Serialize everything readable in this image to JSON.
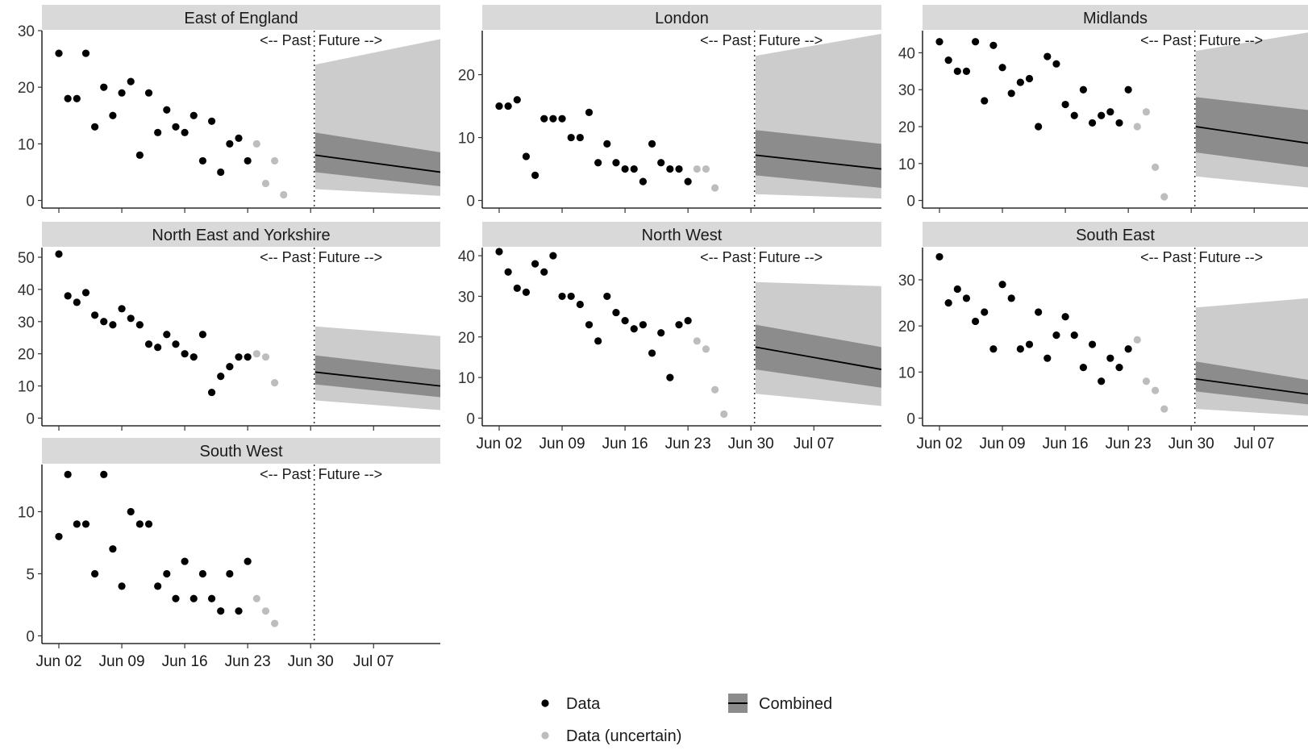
{
  "chart_data": {
    "type": "scatter",
    "past_label": "<-- Past",
    "future_label": "Future -->",
    "x_ticks": [
      "Jun 02",
      "Jun 09",
      "Jun 16",
      "Jun 23",
      "Jun 30",
      "Jul 07"
    ],
    "legend": {
      "data_label": "Data",
      "uncertain_label": "Data (uncertain)",
      "combined_label": "Combined",
      "placement": "bottom"
    },
    "colors": {
      "data": "#000000",
      "uncertain": "#bdbdbd",
      "band_outer": "#cccccc",
      "band_inner": "#8c8c8c",
      "median": "#000000",
      "strip": "#d9d9d9"
    },
    "panels": [
      {
        "title": "East of England",
        "ylim": [
          0,
          30
        ],
        "y_ticks": [
          0,
          10,
          20,
          30
        ],
        "data_start": "Jun 02",
        "data": [
          26,
          18,
          18,
          26,
          13,
          20,
          15,
          19,
          21,
          8,
          19,
          12,
          16,
          13,
          12,
          15,
          7,
          14,
          5,
          10,
          11,
          7
        ],
        "uncertain": [
          10,
          3,
          7,
          1
        ],
        "forecast": {
          "median": [
            8,
            5
          ],
          "inner": [
            [
              5,
              12
            ],
            [
              2.5,
              8.5
            ]
          ],
          "outer": [
            [
              2,
              24
            ],
            [
              0.8,
              28.5
            ]
          ]
        }
      },
      {
        "title": "London",
        "ylim": [
          0,
          27
        ],
        "y_ticks": [
          0,
          10,
          20
        ],
        "data_start": "Jun 02",
        "data": [
          15,
          15,
          16,
          7,
          4,
          13,
          13,
          13,
          10,
          10,
          14,
          6,
          9,
          6,
          5,
          5,
          3,
          9,
          6,
          5,
          5,
          3
        ],
        "uncertain": [
          5,
          5,
          2
        ],
        "forecast": {
          "median": [
            7.2,
            5
          ],
          "inner": [
            [
              4,
              11.2
            ],
            [
              2,
              9
            ]
          ],
          "outer": [
            [
              1,
              23
            ],
            [
              0.3,
              26.5
            ]
          ]
        }
      },
      {
        "title": "Midlands",
        "ylim": [
          0,
          46
        ],
        "y_ticks": [
          0,
          10,
          20,
          30,
          40
        ],
        "data_start": "Jun 02",
        "data": [
          43,
          38,
          35,
          35,
          43,
          27,
          42,
          36,
          29,
          32,
          33,
          20,
          39,
          37,
          26,
          23,
          30,
          21,
          23,
          24,
          21,
          30
        ],
        "uncertain": [
          20,
          24,
          9,
          1
        ],
        "forecast": {
          "median": [
            20,
            15.5
          ],
          "inner": [
            [
              13,
              28
            ],
            [
              9,
              24.5
            ]
          ],
          "outer": [
            [
              6.5,
              40.5
            ],
            [
              3.5,
              45.5
            ]
          ]
        }
      },
      {
        "title": "North East and Yorkshire",
        "ylim": [
          0,
          53
        ],
        "y_ticks": [
          0,
          10,
          20,
          30,
          40,
          50
        ],
        "data_start": "Jun 02",
        "data": [
          51,
          38,
          36,
          39,
          32,
          30,
          29,
          34,
          31,
          29,
          23,
          22,
          26,
          23,
          20,
          19,
          26,
          8,
          13,
          16,
          19,
          19
        ],
        "uncertain": [
          20,
          19,
          11
        ],
        "forecast": {
          "median": [
            14.3,
            10
          ],
          "inner": [
            [
              10.5,
              19.5
            ],
            [
              6.5,
              15
            ]
          ],
          "outer": [
            [
              5.5,
              28.5
            ],
            [
              2.5,
              25.5
            ]
          ]
        }
      },
      {
        "title": "North West",
        "ylim": [
          0,
          42
        ],
        "y_ticks": [
          0,
          10,
          20,
          30,
          40
        ],
        "data_start": "Jun 02",
        "data": [
          41,
          36,
          32,
          31,
          38,
          36,
          40,
          30,
          30,
          28,
          23,
          19,
          30,
          26,
          24,
          22,
          23,
          16,
          21,
          10,
          23,
          24
        ],
        "uncertain": [
          19,
          17,
          7,
          1
        ],
        "forecast": {
          "median": [
            17.5,
            12
          ],
          "inner": [
            [
              12,
              23
            ],
            [
              7.5,
              17.5
            ]
          ],
          "outer": [
            [
              6,
              33.5
            ],
            [
              3,
              32.5
            ]
          ]
        }
      },
      {
        "title": "South East",
        "ylim": [
          0,
          37
        ],
        "y_ticks": [
          0,
          10,
          20,
          30
        ],
        "data_start": "Jun 02",
        "data": [
          35,
          25,
          28,
          26,
          21,
          23,
          15,
          29,
          26,
          15,
          16,
          23,
          13,
          18,
          22,
          18,
          11,
          16,
          8,
          13,
          11,
          15
        ],
        "uncertain": [
          17,
          8,
          6,
          2
        ],
        "forecast": {
          "median": [
            8.5,
            5.2
          ],
          "inner": [
            [
              5.8,
              12.3
            ],
            [
              3,
              8.3
            ]
          ],
          "outer": [
            [
              2,
              24
            ],
            [
              0.5,
              26
            ]
          ]
        }
      },
      {
        "title": "South West",
        "ylim": [
          0,
          13.8
        ],
        "y_ticks": [
          0,
          5,
          10
        ],
        "data_start": "Jun 02",
        "data": [
          8,
          13,
          9,
          9,
          5,
          13,
          7,
          4,
          10,
          9,
          9,
          4,
          5,
          3,
          6,
          3,
          5,
          3,
          2,
          5,
          2,
          6
        ],
        "uncertain": [
          3,
          2,
          1
        ],
        "forecast": null
      }
    ]
  }
}
